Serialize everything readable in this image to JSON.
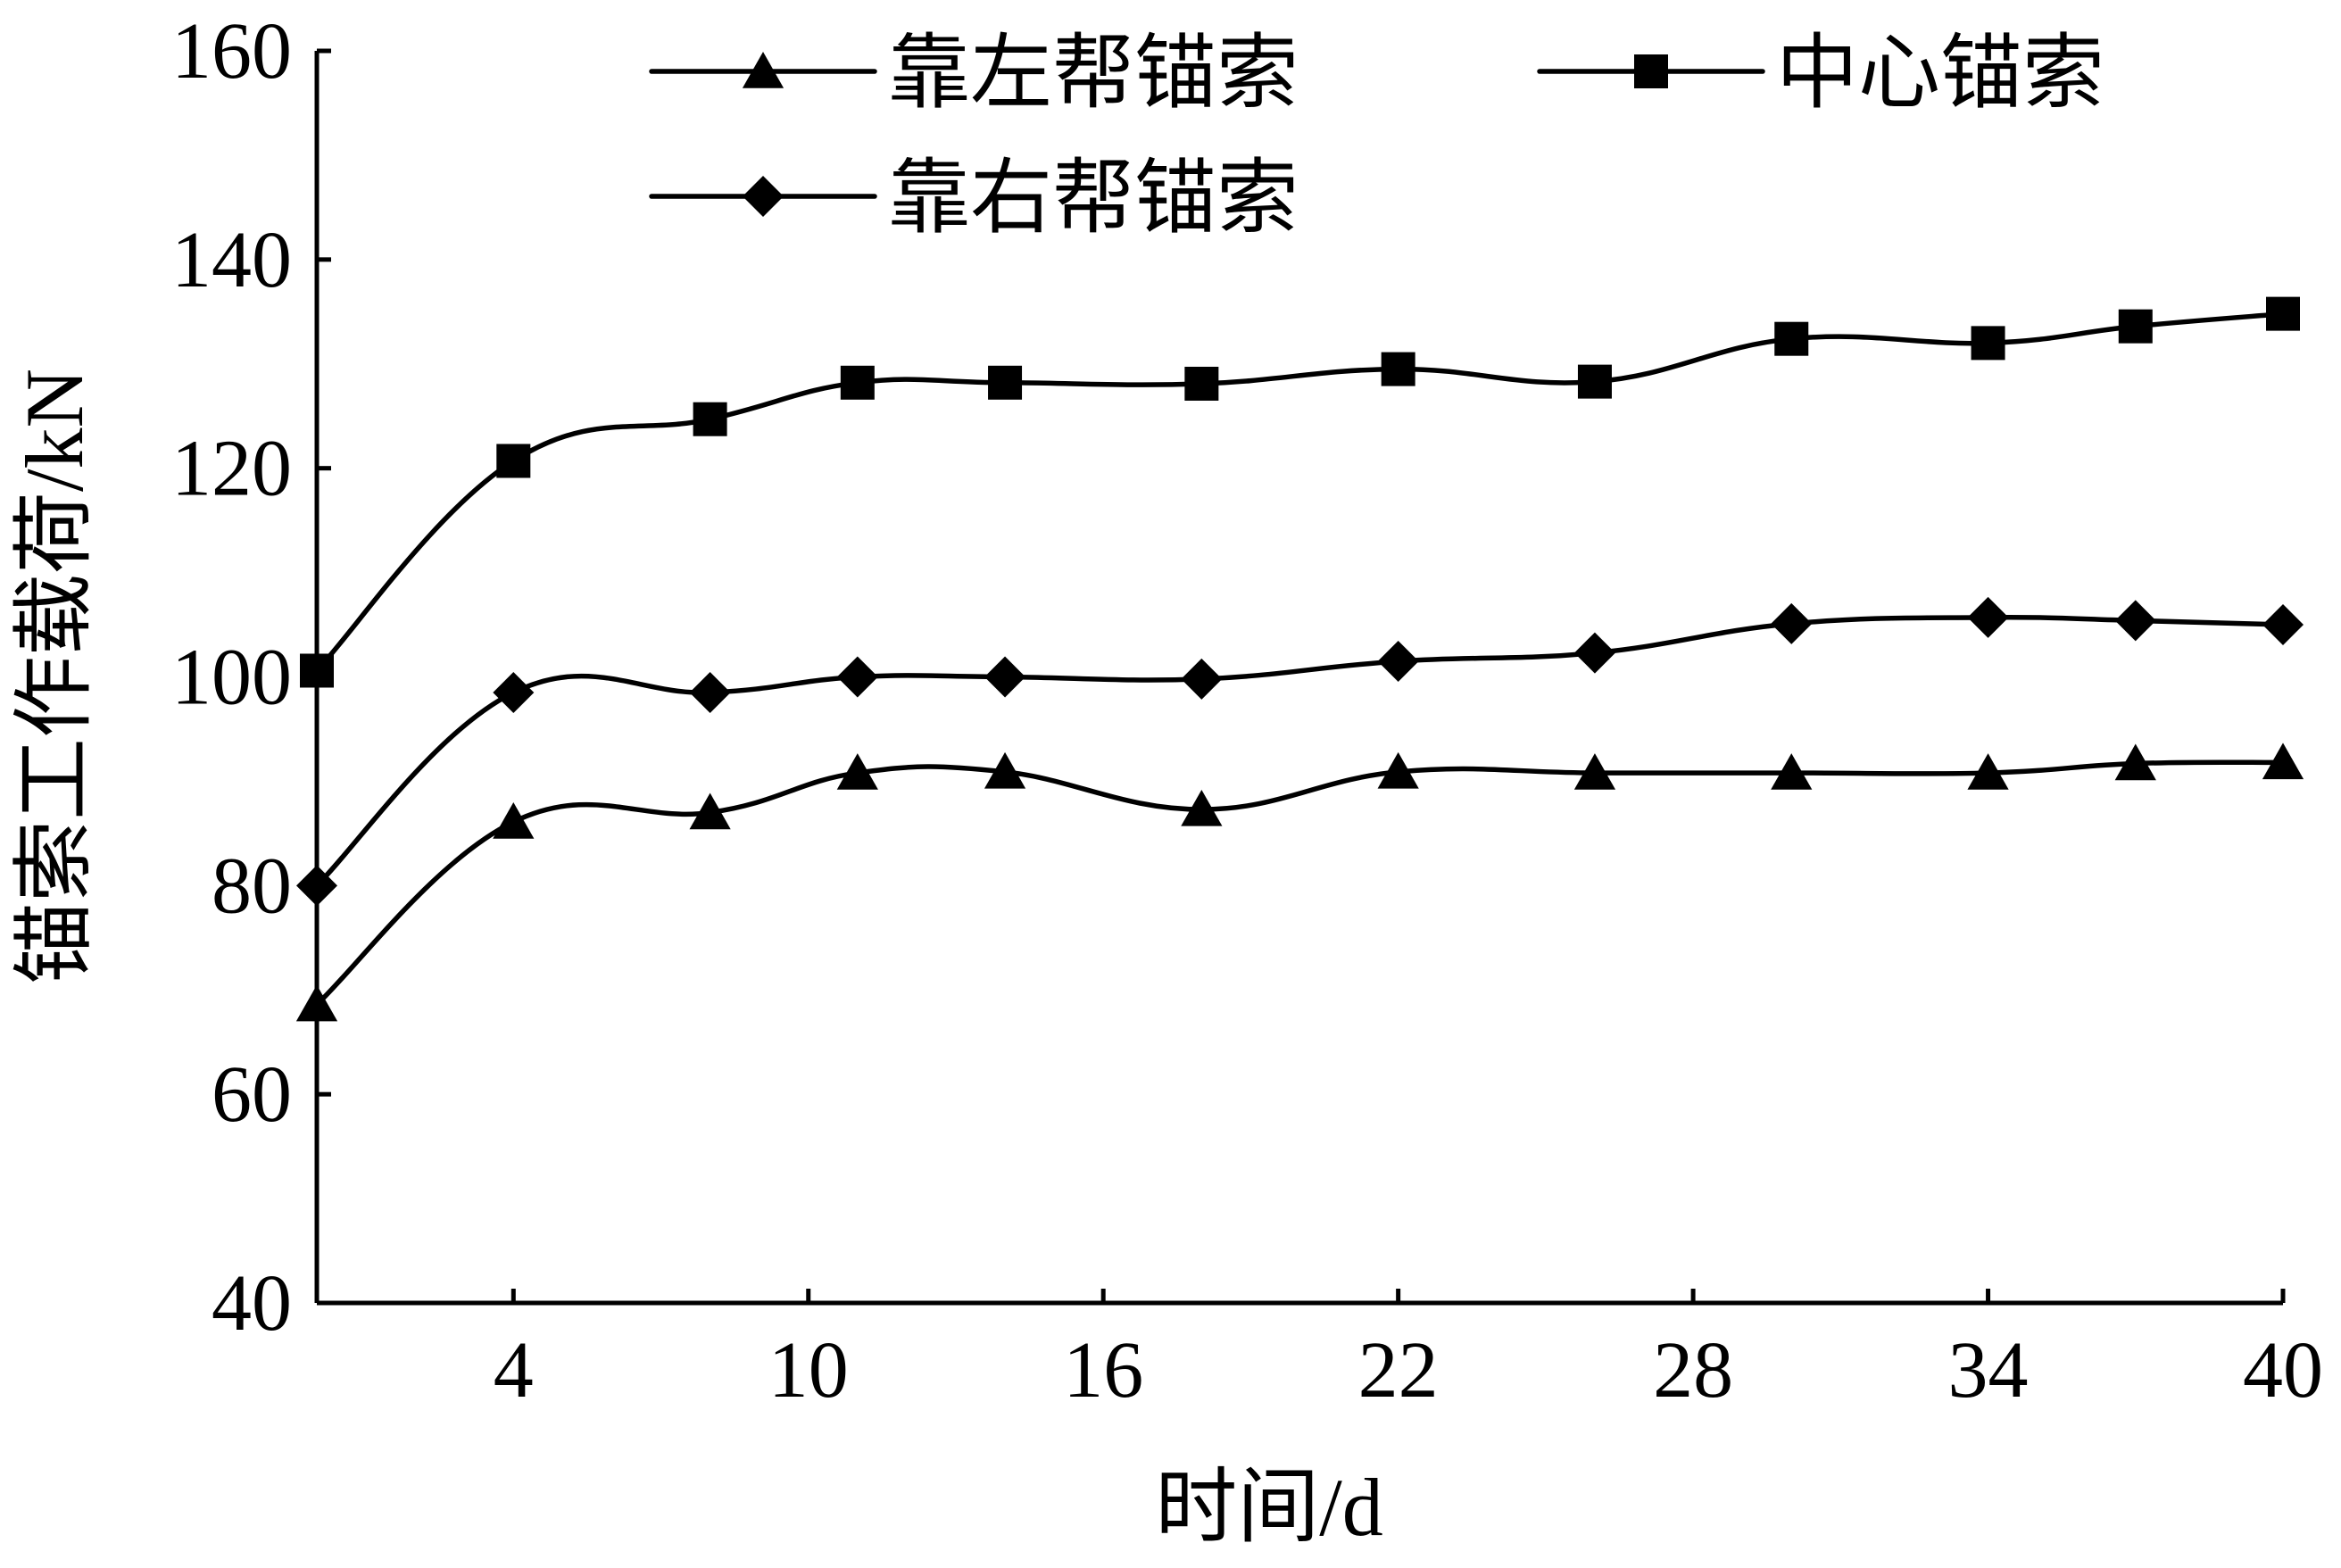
{
  "chart_data": {
    "type": "line",
    "title": "",
    "xlabel": "时间/d",
    "ylabel": "锚索工作载荷/kN",
    "xlim": [
      0,
      40
    ],
    "ylim": [
      40,
      160
    ],
    "xticks": [
      4,
      10,
      16,
      22,
      28,
      34,
      40
    ],
    "yticks": [
      40,
      60,
      80,
      100,
      120,
      140,
      160
    ],
    "grid": false,
    "legend": "top",
    "series": [
      {
        "name": "靠左帮锚索",
        "marker": "triangle",
        "x": [
          0,
          4,
          8,
          11,
          14,
          18,
          22,
          26,
          30,
          34,
          37,
          40
        ],
        "y": [
          68.6,
          86.1,
          87.0,
          90.8,
          90.9,
          87.3,
          90.9,
          90.8,
          90.8,
          90.8,
          91.7,
          91.8
        ]
      },
      {
        "name": "中心锚索",
        "marker": "square",
        "x": [
          0,
          4,
          8,
          11,
          14,
          18,
          22,
          26,
          30,
          34,
          37,
          40
        ],
        "y": [
          100.6,
          120.7,
          124.7,
          128.2,
          128.2,
          128.1,
          129.5,
          128.3,
          132.4,
          132.0,
          133.6,
          134.8
        ]
      },
      {
        "name": "靠右帮锚索",
        "marker": "diamond",
        "x": [
          0,
          4,
          8,
          11,
          14,
          18,
          22,
          26,
          30,
          34,
          37,
          40
        ],
        "y": [
          80.0,
          98.5,
          98.5,
          100.0,
          100.0,
          99.8,
          101.5,
          102.3,
          105.1,
          105.7,
          105.4,
          105.0
        ]
      }
    ]
  },
  "colors": {
    "line": "#000000",
    "background": "#ffffff"
  }
}
